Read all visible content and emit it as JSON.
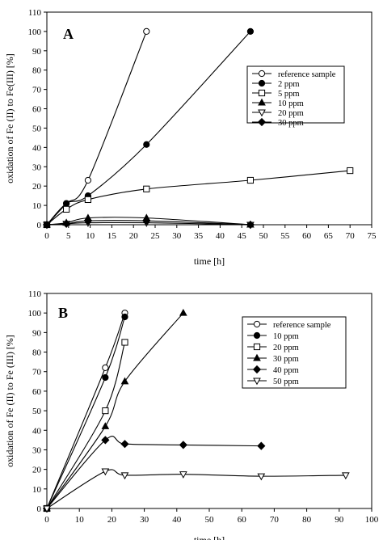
{
  "chart_data": [
    {
      "panel": "A",
      "type": "line",
      "xlabel": "time [h]",
      "ylabel": "oxidation of Fe (II) to Fe(III) [%]",
      "xlim": [
        0,
        75
      ],
      "ylim": [
        0,
        110
      ],
      "xticks": [
        0,
        5,
        10,
        15,
        20,
        25,
        30,
        35,
        40,
        45,
        50,
        55,
        60,
        65,
        70,
        75
      ],
      "yticks": [
        0,
        10,
        20,
        30,
        40,
        50,
        60,
        70,
        80,
        90,
        100,
        110
      ],
      "grid": false,
      "legend_position": "right",
      "series": [
        {
          "name": "reference sample",
          "marker": "circle-open",
          "points": [
            [
              0,
              0
            ],
            [
              4.5,
              11
            ],
            [
              9.5,
              23
            ],
            [
              23,
              100
            ]
          ]
        },
        {
          "name": "2 ppm",
          "marker": "circle-filled",
          "points": [
            [
              0,
              0
            ],
            [
              4.5,
              11
            ],
            [
              9.5,
              15
            ],
            [
              23,
              41.5
            ],
            [
              47,
              100
            ]
          ]
        },
        {
          "name": "5 ppm",
          "marker": "square-open",
          "points": [
            [
              0,
              0
            ],
            [
              4.5,
              8
            ],
            [
              9.5,
              13
            ],
            [
              23,
              18.5
            ],
            [
              47,
              23
            ],
            [
              70,
              28
            ]
          ]
        },
        {
          "name": "10 ppm",
          "marker": "triangle-up-filled",
          "points": [
            [
              0,
              0
            ],
            [
              4.5,
              1
            ],
            [
              9.5,
              3.5
            ],
            [
              23,
              3.5
            ],
            [
              47,
              0
            ]
          ]
        },
        {
          "name": "20 ppm",
          "marker": "triangle-down-open",
          "points": [
            [
              0,
              0
            ],
            [
              4.5,
              0.5
            ],
            [
              9.5,
              1
            ],
            [
              23,
              1
            ],
            [
              47,
              0
            ]
          ]
        },
        {
          "name": "30 ppm",
          "marker": "diamond-filled",
          "points": [
            [
              0,
              0
            ],
            [
              4.5,
              0.5
            ],
            [
              9.5,
              2
            ],
            [
              23,
              2
            ],
            [
              47,
              0
            ]
          ]
        }
      ]
    },
    {
      "panel": "B",
      "type": "line",
      "xlabel": "time [h]",
      "ylabel": "oxidation of Fe (II) to Fe (III) [%]",
      "xlim": [
        0,
        100
      ],
      "ylim": [
        0,
        110
      ],
      "xticks": [
        0,
        10,
        20,
        30,
        40,
        50,
        60,
        70,
        80,
        90,
        100
      ],
      "yticks": [
        0,
        10,
        20,
        30,
        40,
        50,
        60,
        70,
        80,
        90,
        100,
        110
      ],
      "grid": false,
      "legend_position": "right",
      "series": [
        {
          "name": "reference sample",
          "marker": "circle-open",
          "points": [
            [
              0,
              0
            ],
            [
              18,
              72
            ],
            [
              24,
              100
            ]
          ]
        },
        {
          "name": "10 ppm",
          "marker": "circle-filled",
          "points": [
            [
              0,
              0
            ],
            [
              18,
              67
            ],
            [
              24,
              98
            ]
          ]
        },
        {
          "name": "20 ppm",
          "marker": "square-open",
          "points": [
            [
              0,
              0
            ],
            [
              18,
              50
            ],
            [
              24,
              85
            ]
          ]
        },
        {
          "name": "30 ppm",
          "marker": "triangle-up-filled",
          "points": [
            [
              0,
              0
            ],
            [
              18,
              42
            ],
            [
              24,
              65
            ],
            [
              42,
              100
            ]
          ]
        },
        {
          "name": "40 ppm",
          "marker": "diamond-filled",
          "points": [
            [
              0,
              0
            ],
            [
              18,
              35
            ],
            [
              24,
              33
            ],
            [
              42,
              32.5
            ],
            [
              66,
              32
            ]
          ]
        },
        {
          "name": "50 ppm",
          "marker": "triangle-down-open",
          "points": [
            [
              0,
              0
            ],
            [
              18,
              19
            ],
            [
              24,
              17
            ],
            [
              42,
              17.5
            ],
            [
              66,
              16.5
            ],
            [
              92,
              17
            ]
          ]
        }
      ]
    }
  ]
}
